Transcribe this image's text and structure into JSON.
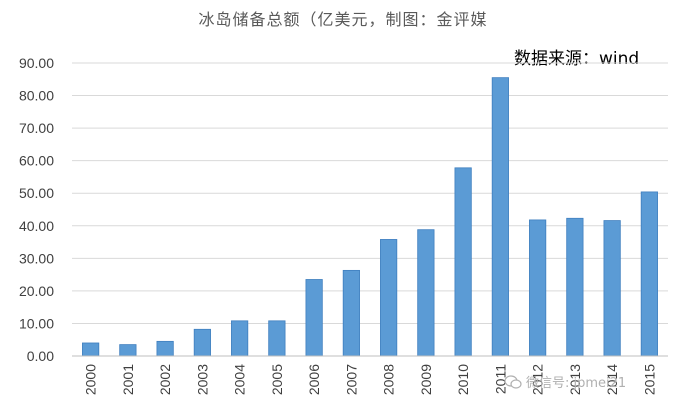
{
  "title": "冰岛储备总额（亿美元，制图：金评媒",
  "source_label": "数据来源：wind",
  "watermark_text": "微信号: jpmei21",
  "colors": {
    "bar": "#5B9BD5",
    "bar_edge": "#3F7FBF",
    "grid": "#D9D9D9",
    "axis_text": "#404040"
  },
  "chart_data": {
    "type": "bar",
    "title": "冰岛储备总额（亿美元，制图：金评媒",
    "categories": [
      "2000",
      "2001",
      "2002",
      "2003",
      "2004",
      "2005",
      "2006",
      "2007",
      "2008",
      "2009",
      "2010",
      "2011",
      "2012",
      "2013",
      "2014",
      "2015"
    ],
    "values": [
      4.0,
      3.5,
      4.5,
      8.2,
      10.8,
      10.8,
      23.5,
      26.3,
      35.8,
      38.8,
      57.8,
      85.5,
      41.8,
      42.3,
      41.6,
      50.4
    ],
    "ylim": [
      0,
      90
    ],
    "yticks": [
      "0.00",
      "10.00",
      "20.00",
      "30.00",
      "40.00",
      "50.00",
      "60.00",
      "70.00",
      "80.00",
      "90.00"
    ],
    "xlabel": "",
    "ylabel": "",
    "grid": true,
    "legend": "none"
  }
}
